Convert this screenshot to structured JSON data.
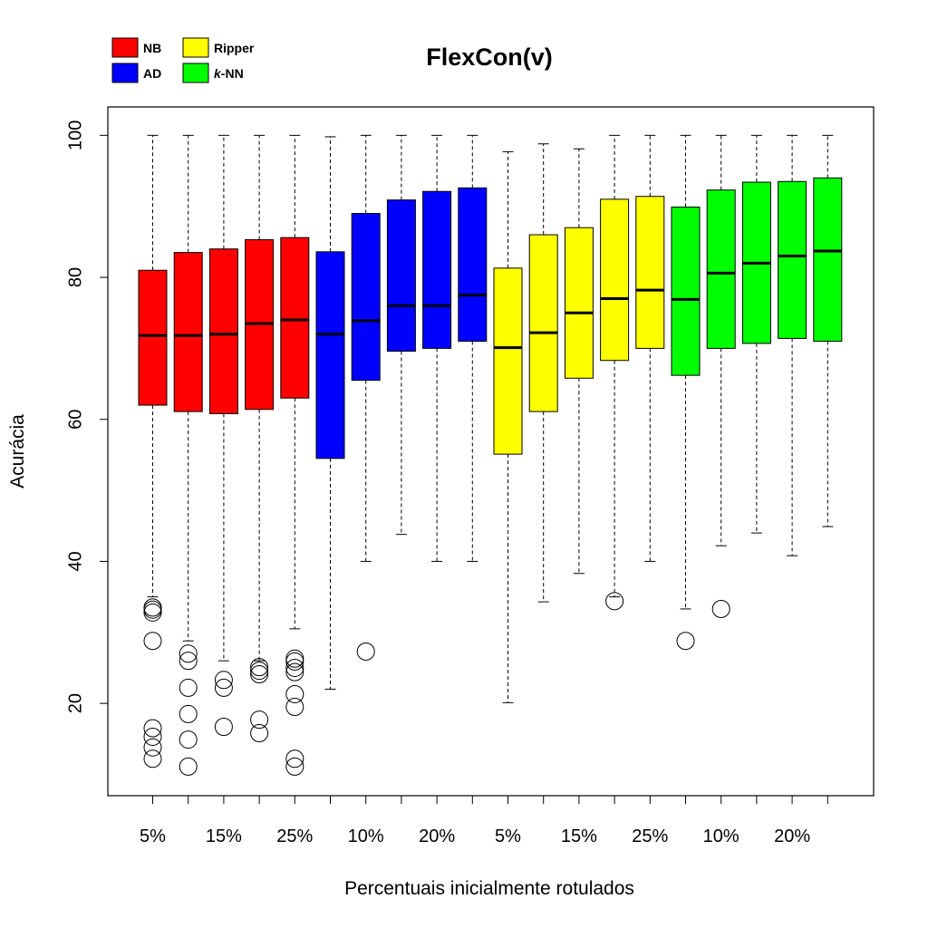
{
  "chart_data": {
    "type": "boxplot",
    "title": "FlexCon(v)",
    "xlabel": "Percentuais inicialmente rotulados",
    "ylabel": "Acurácia",
    "ylim": [
      7,
      104
    ],
    "yticks": [
      20,
      40,
      60,
      80,
      100
    ],
    "grid": false,
    "legend_position": "top-left",
    "legend": [
      {
        "name": "NB",
        "color": "#ff0000"
      },
      {
        "name": "Ripper",
        "color": "#ffff00"
      },
      {
        "name": "AD",
        "color": "#0000ff"
      },
      {
        "name": "k-NN",
        "color": "#00ff00"
      }
    ],
    "x_tick_labels": [
      "5%",
      "",
      "15%",
      "",
      "25%",
      "",
      "10%",
      "",
      "20%",
      "",
      "5%",
      "",
      "15%",
      "",
      "25%",
      "",
      "10%",
      "",
      "20%",
      ""
    ],
    "boxes": [
      {
        "group": "NB",
        "color": "#ff0000",
        "lower_whisker": 35,
        "q1": 62,
        "median": 71.8,
        "q3": 81,
        "upper_whisker": 100,
        "outliers": [
          33.5,
          33.2,
          32.8,
          28.8,
          16.5,
          15.3,
          13.8,
          12.2
        ]
      },
      {
        "group": "NB",
        "color": "#ff0000",
        "lower_whisker": 28.8,
        "q1": 61.1,
        "median": 71.8,
        "q3": 83.5,
        "upper_whisker": 100,
        "outliers": [
          27,
          26,
          22.2,
          18.5,
          14.9,
          11.1
        ]
      },
      {
        "group": "NB",
        "color": "#ff0000",
        "lower_whisker": 26,
        "q1": 60.8,
        "median": 72,
        "q3": 84,
        "upper_whisker": 100,
        "outliers": [
          23.3,
          22.2,
          16.7
        ]
      },
      {
        "group": "NB",
        "color": "#ff0000",
        "lower_whisker": 26,
        "q1": 61.4,
        "median": 73.5,
        "q3": 85.3,
        "upper_whisker": 100,
        "outliers": [
          25.1,
          24.6,
          24.1,
          17.7,
          15.8
        ]
      },
      {
        "group": "NB",
        "color": "#ff0000",
        "lower_whisker": 30.5,
        "q1": 63,
        "median": 74,
        "q3": 85.6,
        "upper_whisker": 100,
        "outliers": [
          26.3,
          25.9,
          25,
          24.4,
          21.3,
          19.5,
          12.2,
          11.1
        ]
      },
      {
        "group": "AD",
        "color": "#0000ff",
        "lower_whisker": 22,
        "q1": 54.5,
        "median": 72,
        "q3": 83.6,
        "upper_whisker": 99.8,
        "outliers": []
      },
      {
        "group": "AD",
        "color": "#0000ff",
        "lower_whisker": 40,
        "q1": 65.5,
        "median": 73.9,
        "q3": 89,
        "upper_whisker": 100,
        "outliers": [
          27.3
        ]
      },
      {
        "group": "AD",
        "color": "#0000ff",
        "lower_whisker": 43.8,
        "q1": 69.6,
        "median": 76,
        "q3": 90.9,
        "upper_whisker": 100,
        "outliers": []
      },
      {
        "group": "AD",
        "color": "#0000ff",
        "lower_whisker": 40,
        "q1": 70,
        "median": 76,
        "q3": 92.1,
        "upper_whisker": 100,
        "outliers": []
      },
      {
        "group": "AD",
        "color": "#0000ff",
        "lower_whisker": 40,
        "q1": 71,
        "median": 77.5,
        "q3": 92.6,
        "upper_whisker": 100,
        "outliers": []
      },
      {
        "group": "Ripper",
        "color": "#ffff00",
        "lower_whisker": 20.1,
        "q1": 55.1,
        "median": 70.1,
        "q3": 81.3,
        "upper_whisker": 97.7,
        "outliers": []
      },
      {
        "group": "Ripper",
        "color": "#ffff00",
        "lower_whisker": 34.3,
        "q1": 61.1,
        "median": 72.2,
        "q3": 86,
        "upper_whisker": 98.8,
        "outliers": []
      },
      {
        "group": "Ripper",
        "color": "#ffff00",
        "lower_whisker": 38.3,
        "q1": 65.8,
        "median": 75,
        "q3": 87,
        "upper_whisker": 98.1,
        "outliers": []
      },
      {
        "group": "Ripper",
        "color": "#ffff00",
        "lower_whisker": 35,
        "q1": 68.3,
        "median": 77,
        "q3": 91,
        "upper_whisker": 100,
        "outliers": [
          34.4
        ]
      },
      {
        "group": "Ripper",
        "color": "#ffff00",
        "lower_whisker": 40,
        "q1": 70,
        "median": 78.2,
        "q3": 91.4,
        "upper_whisker": 100,
        "outliers": []
      },
      {
        "group": "k-NN",
        "color": "#00ff00",
        "lower_whisker": 33.3,
        "q1": 66.2,
        "median": 76.9,
        "q3": 89.9,
        "upper_whisker": 100,
        "outliers": [
          28.8
        ]
      },
      {
        "group": "k-NN",
        "color": "#00ff00",
        "lower_whisker": 42.2,
        "q1": 70,
        "median": 80.6,
        "q3": 92.3,
        "upper_whisker": 100,
        "outliers": [
          33.3
        ]
      },
      {
        "group": "k-NN",
        "color": "#00ff00",
        "lower_whisker": 44,
        "q1": 70.7,
        "median": 82,
        "q3": 93.4,
        "upper_whisker": 100,
        "outliers": []
      },
      {
        "group": "k-NN",
        "color": "#00ff00",
        "lower_whisker": 40.8,
        "q1": 71.4,
        "median": 83,
        "q3": 93.5,
        "upper_whisker": 100,
        "outliers": []
      },
      {
        "group": "k-NN",
        "color": "#00ff00",
        "lower_whisker": 44.9,
        "q1": 71,
        "median": 83.7,
        "q3": 94,
        "upper_whisker": 100,
        "outliers": []
      }
    ]
  }
}
